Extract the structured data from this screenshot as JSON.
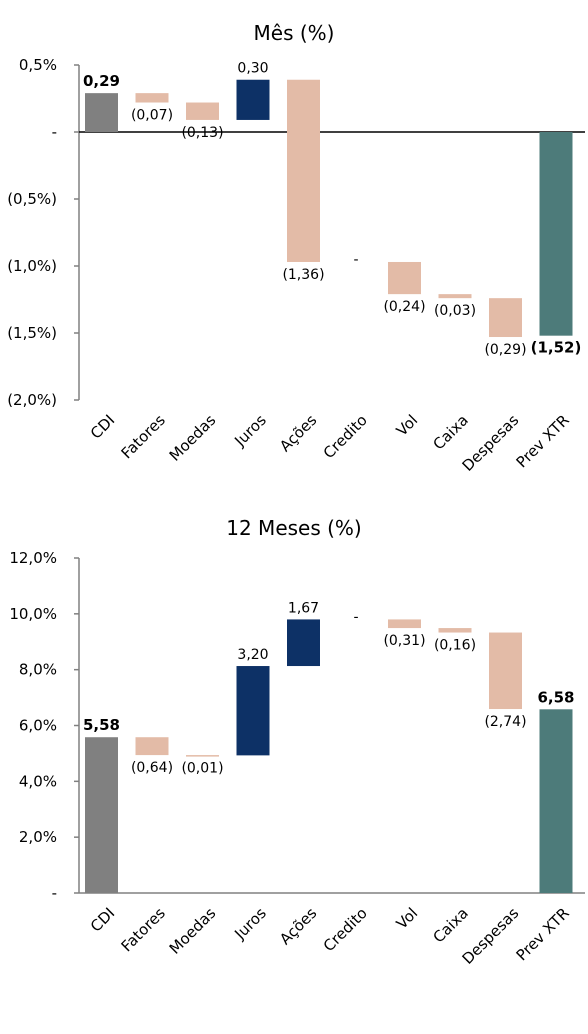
{
  "chart_data": [
    {
      "type": "bar",
      "subtype": "waterfall",
      "title": "Mês (%)",
      "ylim": [
        -2.0,
        0.5
      ],
      "yticks": [
        0.5,
        0,
        -0.5,
        -1.0,
        -1.5,
        -2.0
      ],
      "ytick_labels": [
        "0,5%",
        "-",
        "(0,5%)",
        "(1,0%)",
        "(1,5%)",
        "(2,0%)"
      ],
      "categories": [
        "CDI",
        "Fatores",
        "Moedas",
        "Juros",
        "Ações",
        "Credito",
        "Vol",
        "Caixa",
        "Despesas",
        "Prev XTR"
      ],
      "bars": [
        {
          "kind": "total",
          "start": 0,
          "end": 0.29
        },
        {
          "kind": "neg",
          "start": 0.29,
          "end": 0.22
        },
        {
          "kind": "neg",
          "start": 0.22,
          "end": 0.09
        },
        {
          "kind": "pos",
          "start": 0.09,
          "end": 0.39
        },
        {
          "kind": "neg",
          "start": 0.39,
          "end": -0.97
        },
        {
          "kind": "none",
          "start": -0.97,
          "end": -0.97
        },
        {
          "kind": "neg",
          "start": -0.97,
          "end": -1.21
        },
        {
          "kind": "neg",
          "start": -1.21,
          "end": -1.24
        },
        {
          "kind": "neg",
          "start": -1.24,
          "end": -1.53
        },
        {
          "kind": "final",
          "start": 0,
          "end": -1.52
        }
      ],
      "value_labels": [
        "0,29",
        "(0,07)",
        "(0,13)",
        "0,30",
        "(1,36)",
        "-",
        "(0,24)",
        "(0,03)",
        "(0,29)",
        "(1,52)"
      ],
      "colors": {
        "total": "#808080",
        "neg": "#e3bba7",
        "pos": "#0d3166",
        "final": "#4d7b7a"
      }
    },
    {
      "type": "bar",
      "subtype": "waterfall",
      "title": "12 Meses (%)",
      "ylim": [
        0,
        12.0
      ],
      "yticks": [
        12,
        10,
        8,
        6,
        4,
        2,
        0
      ],
      "ytick_labels": [
        "12,0%",
        "10,0%",
        "8,0%",
        "6,0%",
        "4,0%",
        "2,0%",
        "-"
      ],
      "categories": [
        "CDI",
        "Fatores",
        "Moedas",
        "Juros",
        "Ações",
        "Credito",
        "Vol",
        "Caixa",
        "Despesas",
        "Prev XTR"
      ],
      "bars": [
        {
          "kind": "total",
          "start": 0,
          "end": 5.58
        },
        {
          "kind": "neg",
          "start": 5.58,
          "end": 4.94
        },
        {
          "kind": "neg",
          "start": 4.94,
          "end": 4.93
        },
        {
          "kind": "pos",
          "start": 4.93,
          "end": 8.13
        },
        {
          "kind": "pos",
          "start": 8.13,
          "end": 9.8
        },
        {
          "kind": "none",
          "start": 9.8,
          "end": 9.8
        },
        {
          "kind": "neg",
          "start": 9.8,
          "end": 9.49
        },
        {
          "kind": "neg",
          "start": 9.49,
          "end": 9.33
        },
        {
          "kind": "neg",
          "start": 9.33,
          "end": 6.59
        },
        {
          "kind": "final",
          "start": 0,
          "end": 6.58
        }
      ],
      "value_labels": [
        "5,58",
        "(0,64)",
        "(0,01)",
        "3,20",
        "1,67",
        "-",
        "(0,31)",
        "(0,16)",
        "(2,74)",
        "6,58"
      ],
      "colors": {
        "total": "#808080",
        "neg": "#e3bba7",
        "pos": "#0d3166",
        "final": "#4d7b7a"
      }
    }
  ]
}
